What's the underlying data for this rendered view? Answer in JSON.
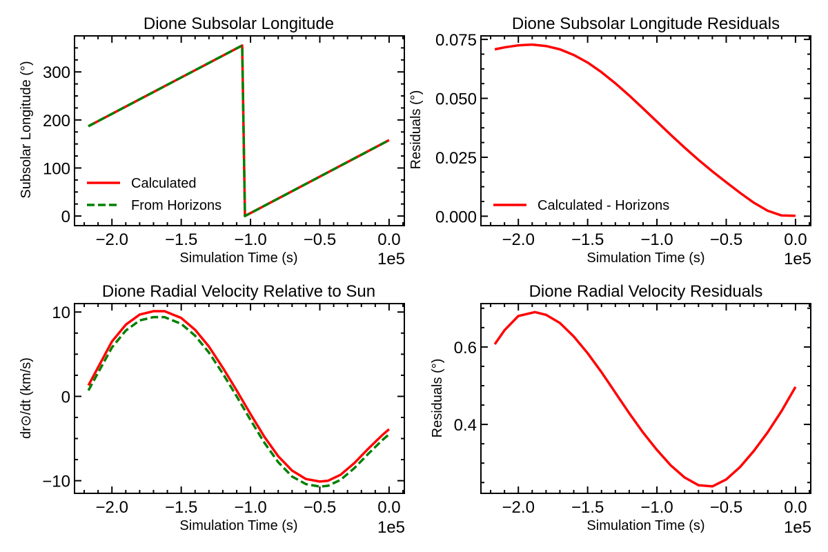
{
  "chart_data": [
    {
      "id": "p1",
      "type": "line",
      "title": "Dione Subsolar Longitude",
      "xlabel": "Simulation Time (s)",
      "ylabel": "Subsolar Longitude (°)",
      "x_offset_text": "1e5",
      "xlim": [
        -2.27,
        0.11
      ],
      "ylim": [
        -20,
        375
      ],
      "xticks": [
        -2.0,
        -1.5,
        -1.0,
        -0.5,
        0.0
      ],
      "xtick_labels": [
        "−2.0",
        "−1.5",
        "−1.0",
        "−0.5",
        "0.0"
      ],
      "yticks": [
        0,
        100,
        200,
        300
      ],
      "ytick_labels": [
        "0",
        "100",
        "200",
        "300"
      ],
      "legend": {
        "position": "lower-left",
        "entries": [
          "Calculated",
          "From Horizons"
        ]
      },
      "series": [
        {
          "name": "Calculated",
          "color": "#ff0000",
          "style": "solid",
          "x": [
            -2.17,
            -1.06,
            -1.04,
            0.0
          ],
          "y": [
            187,
            355,
            0,
            158
          ]
        },
        {
          "name": "From Horizons",
          "color": "#008000",
          "style": "dashed",
          "x": [
            -2.17,
            -1.06,
            -1.04,
            0.0
          ],
          "y": [
            187,
            355,
            0,
            158
          ]
        }
      ]
    },
    {
      "id": "p2",
      "type": "line",
      "title": "Dione Subsolar Longitude Residuals",
      "xlabel": "Simulation Time (s)",
      "ylabel": "Residuals (°)",
      "x_offset_text": "1e5",
      "xlim": [
        -2.27,
        0.11
      ],
      "ylim": [
        -0.004,
        0.0765
      ],
      "xticks": [
        -2.0,
        -1.5,
        -1.0,
        -0.5,
        0.0
      ],
      "xtick_labels": [
        "−2.0",
        "−1.5",
        "−1.0",
        "−0.5",
        "0.0"
      ],
      "yticks": [
        0.0,
        0.025,
        0.05,
        0.075
      ],
      "ytick_labels": [
        "0.000",
        "0.025",
        "0.050",
        "0.075"
      ],
      "legend": {
        "position": "lower-left",
        "entries": [
          "Calculated - Horizons"
        ]
      },
      "series": [
        {
          "name": "Calculated - Horizons",
          "color": "#ff0000",
          "style": "solid",
          "x": [
            -2.17,
            -2.1,
            -2.0,
            -1.9,
            -1.8,
            -1.7,
            -1.6,
            -1.5,
            -1.4,
            -1.3,
            -1.2,
            -1.1,
            -1.0,
            -0.9,
            -0.8,
            -0.7,
            -0.6,
            -0.5,
            -0.4,
            -0.3,
            -0.2,
            -0.1,
            0.0
          ],
          "y": [
            0.0708,
            0.0716,
            0.0725,
            0.0728,
            0.0722,
            0.0708,
            0.0684,
            0.0652,
            0.0611,
            0.0564,
            0.0512,
            0.0457,
            0.0401,
            0.0345,
            0.0291,
            0.0239,
            0.019,
            0.0144,
            0.0099,
            0.0057,
            0.0023,
            0.0003,
            0.0002
          ]
        }
      ]
    },
    {
      "id": "p3",
      "type": "line",
      "title": "Dione Radial Velocity Relative to Sun",
      "xlabel": "Simulation Time (s)",
      "ylabel": "dr⊙/dt (km/s)",
      "x_offset_text": "1e5",
      "xlim": [
        -2.27,
        0.11
      ],
      "ylim": [
        -11.5,
        11.0
      ],
      "xticks": [
        -2.0,
        -1.5,
        -1.0,
        -0.5,
        0.0
      ],
      "xtick_labels": [
        "−2.0",
        "−1.5",
        "−1.0",
        "−0.5",
        "0.0"
      ],
      "yticks": [
        -10,
        0,
        10
      ],
      "ytick_labels": [
        "−10",
        "0",
        "10"
      ],
      "series": [
        {
          "name": "Calculated",
          "color": "#ff0000",
          "style": "solid",
          "x": [
            -2.17,
            -2.0,
            -1.9,
            -1.8,
            -1.7,
            -1.62,
            -1.5,
            -1.4,
            -1.3,
            -1.2,
            -1.1,
            -1.0,
            -0.9,
            -0.8,
            -0.7,
            -0.6,
            -0.5,
            -0.44,
            -0.35,
            -0.25,
            -0.15,
            -0.05,
            0.0
          ],
          "y": [
            1.3,
            6.5,
            8.5,
            9.7,
            10.1,
            10.1,
            9.3,
            7.9,
            5.9,
            3.4,
            0.7,
            -2.1,
            -4.8,
            -7.1,
            -8.8,
            -9.8,
            -10.1,
            -10.0,
            -9.3,
            -7.9,
            -6.2,
            -4.6,
            -3.9
          ]
        },
        {
          "name": "From Horizons",
          "color": "#008000",
          "style": "dashed",
          "x": [
            -2.17,
            -2.0,
            -1.9,
            -1.8,
            -1.7,
            -1.62,
            -1.5,
            -1.4,
            -1.3,
            -1.2,
            -1.1,
            -1.0,
            -0.9,
            -0.8,
            -0.7,
            -0.6,
            -0.5,
            -0.44,
            -0.35,
            -0.25,
            -0.15,
            -0.05,
            0.0
          ],
          "y": [
            0.7,
            5.8,
            7.8,
            9.0,
            9.4,
            9.4,
            8.6,
            7.2,
            5.2,
            2.7,
            0.0,
            -2.8,
            -5.5,
            -7.8,
            -9.5,
            -10.4,
            -10.7,
            -10.6,
            -9.9,
            -8.5,
            -6.8,
            -5.2,
            -4.5
          ]
        }
      ]
    },
    {
      "id": "p4",
      "type": "line",
      "title": "Dione Radial Velocity Residuals",
      "xlabel": "Simulation Time (s)",
      "ylabel": "Residuals (°)",
      "x_offset_text": "1e5",
      "xlim": [
        -2.27,
        0.11
      ],
      "ylim": [
        0.222,
        0.712
      ],
      "xticks": [
        -2.0,
        -1.5,
        -1.0,
        -0.5,
        0.0
      ],
      "xtick_labels": [
        "−2.0",
        "−1.5",
        "−1.0",
        "−0.5",
        "0.0"
      ],
      "yticks": [
        0.4,
        0.6
      ],
      "ytick_labels": [
        "0.4",
        "0.6"
      ],
      "series": [
        {
          "name": "Calculated - Horizons",
          "color": "#ff0000",
          "style": "solid",
          "x": [
            -2.17,
            -2.1,
            -2.0,
            -1.88,
            -1.8,
            -1.7,
            -1.6,
            -1.5,
            -1.4,
            -1.3,
            -1.2,
            -1.1,
            -1.0,
            -0.9,
            -0.8,
            -0.7,
            -0.6,
            -0.5,
            -0.4,
            -0.3,
            -0.2,
            -0.1,
            0.0
          ],
          "y": [
            0.607,
            0.643,
            0.68,
            0.69,
            0.683,
            0.662,
            0.627,
            0.584,
            0.535,
            0.482,
            0.429,
            0.379,
            0.334,
            0.294,
            0.263,
            0.243,
            0.24,
            0.258,
            0.29,
            0.332,
            0.38,
            0.435,
            0.497
          ]
        }
      ]
    }
  ]
}
